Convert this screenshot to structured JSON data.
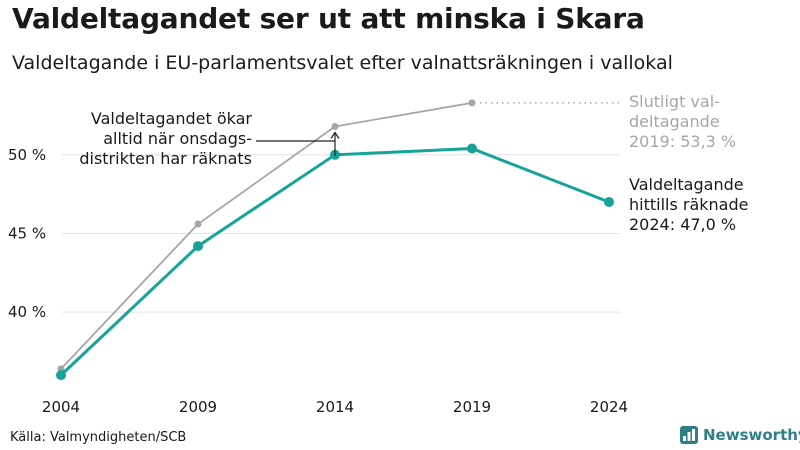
{
  "title": "Valdeltagandet ser ut att minska i Skara",
  "subtitle": "Valdeltagande i EU-parlamentsvalet efter valnattsräkningen i vallokal",
  "source": "Källa: Valmyndigheten/SCB",
  "brand": "Newsworthy",
  "colors": {
    "counted": "#16a39a",
    "final": "#a6a6a6",
    "grid": "#e3e3e3",
    "axis_text": "#1a1a1a",
    "brand": "#2f7f86"
  },
  "chart_data": {
    "type": "line",
    "categories": [
      "2004",
      "2009",
      "2014",
      "2019",
      "2024"
    ],
    "y_ticks": [
      {
        "value": 40,
        "label": "40 %"
      },
      {
        "value": 45,
        "label": "45 %"
      },
      {
        "value": 50,
        "label": "50 %"
      }
    ],
    "ylim": [
      34.8,
      54.5
    ],
    "grid": true,
    "series": [
      {
        "key": "counted",
        "values": [
          36.0,
          44.2,
          50.0,
          50.4,
          47.0
        ]
      },
      {
        "key": "final",
        "values": [
          36.4,
          45.6,
          51.8,
          53.3,
          null
        ]
      }
    ],
    "annotations": {
      "final_label": [
        "Slutligt val-",
        "deltagande",
        "2019: 53,3 %"
      ],
      "counted_label": [
        "Valdeltagande",
        "hittills räknade",
        "2024: 47,0 %"
      ],
      "wednesday_note": [
        "Valdeltagandet ökar",
        "alltid när onsdags-",
        "distrikten har räknats"
      ]
    }
  }
}
